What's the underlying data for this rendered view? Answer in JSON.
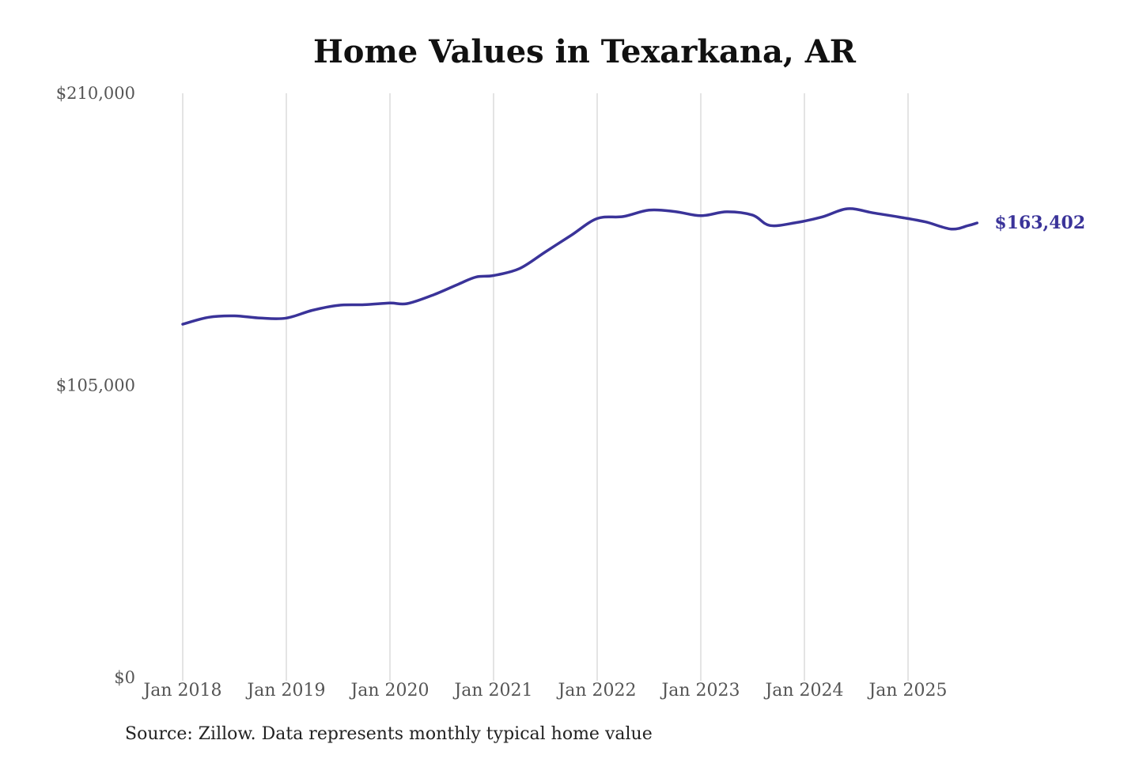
{
  "title": "Home Values in Texarkana, AR",
  "source": "Source: Zillow. Data represents monthly typical home value",
  "colors": {
    "line": "#3a3399",
    "grid": "#c8c8c8",
    "tick_text": "#555555"
  },
  "chart_data": {
    "type": "line",
    "title": "Home Values in Texarkana, AR",
    "xlabel": "",
    "ylabel": "",
    "ylim": [
      0,
      210000
    ],
    "xlim": [
      "2018-01",
      "2025-09"
    ],
    "y_ticks": [
      {
        "value": 210000,
        "label": "$210,000"
      },
      {
        "value": 105000,
        "label": "$105,000"
      },
      {
        "value": 0,
        "label": "$0"
      }
    ],
    "x_ticks": [
      {
        "date": "2018-01",
        "label": "Jan 2018"
      },
      {
        "date": "2019-01",
        "label": "Jan 2019"
      },
      {
        "date": "2020-01",
        "label": "Jan 2020"
      },
      {
        "date": "2021-01",
        "label": "Jan 2021"
      },
      {
        "date": "2022-01",
        "label": "Jan 2022"
      },
      {
        "date": "2023-01",
        "label": "Jan 2023"
      },
      {
        "date": "2024-01",
        "label": "Jan 2024"
      },
      {
        "date": "2025-01",
        "label": "Jan 2025"
      }
    ],
    "grid": {
      "vertical": true,
      "horizontal": false
    },
    "end_label": "$163,402",
    "series": [
      {
        "points": [
          {
            "x": "2018-01",
            "y": 127000
          },
          {
            "x": "2018-04",
            "y": 129500
          },
          {
            "x": "2018-07",
            "y": 130000
          },
          {
            "x": "2018-10",
            "y": 129200
          },
          {
            "x": "2019-01",
            "y": 129200
          },
          {
            "x": "2019-04",
            "y": 132000
          },
          {
            "x": "2019-07",
            "y": 133800
          },
          {
            "x": "2019-10",
            "y": 134000
          },
          {
            "x": "2020-01",
            "y": 134600
          },
          {
            "x": "2020-03",
            "y": 134400
          },
          {
            "x": "2020-06",
            "y": 137500
          },
          {
            "x": "2020-09",
            "y": 141500
          },
          {
            "x": "2020-11",
            "y": 144000
          },
          {
            "x": "2021-01",
            "y": 144500
          },
          {
            "x": "2021-04",
            "y": 147000
          },
          {
            "x": "2021-07",
            "y": 153000
          },
          {
            "x": "2021-10",
            "y": 159000
          },
          {
            "x": "2022-01",
            "y": 165000
          },
          {
            "x": "2022-04",
            "y": 165700
          },
          {
            "x": "2022-07",
            "y": 168000
          },
          {
            "x": "2022-10",
            "y": 167500
          },
          {
            "x": "2023-01",
            "y": 166000
          },
          {
            "x": "2023-04",
            "y": 167400
          },
          {
            "x": "2023-07",
            "y": 166200
          },
          {
            "x": "2023-09",
            "y": 162500
          },
          {
            "x": "2023-12",
            "y": 163500
          },
          {
            "x": "2024-03",
            "y": 165500
          },
          {
            "x": "2024-06",
            "y": 168500
          },
          {
            "x": "2024-09",
            "y": 167000
          },
          {
            "x": "2024-12",
            "y": 165500
          },
          {
            "x": "2025-03",
            "y": 163800
          },
          {
            "x": "2025-06",
            "y": 161200
          },
          {
            "x": "2025-08",
            "y": 162500
          },
          {
            "x": "2025-09",
            "y": 163402
          }
        ]
      }
    ]
  }
}
